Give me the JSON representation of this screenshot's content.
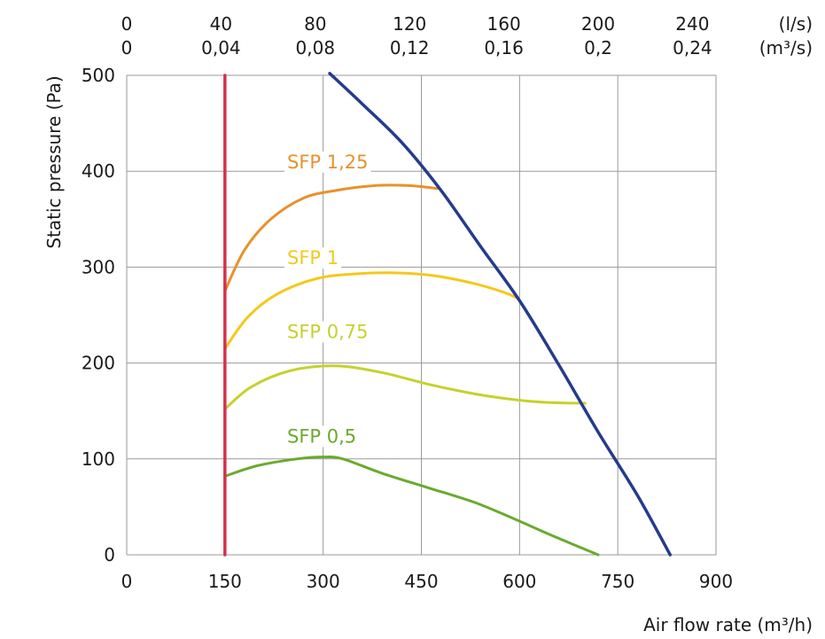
{
  "chart_data": {
    "type": "line",
    "xlabel": "Air flow rate (m³/h)",
    "ylabel": "Static pressure (Pa)",
    "xlim": [
      0,
      900
    ],
    "ylim": [
      0,
      500
    ],
    "x_ticks": [
      "0",
      "150",
      "300",
      "450",
      "600",
      "750",
      "900"
    ],
    "y_ticks": [
      "0",
      "100",
      "200",
      "300",
      "400",
      "500"
    ],
    "top_axis_ls": {
      "unit": "(l/s)",
      "ticks": [
        {
          "value": 0,
          "label": "0"
        },
        {
          "value": 40,
          "label": "40"
        },
        {
          "value": 80,
          "label": "80"
        },
        {
          "value": 120,
          "label": "120"
        },
        {
          "value": 160,
          "label": "160"
        },
        {
          "value": 200,
          "label": "200"
        },
        {
          "value": 240,
          "label": "240"
        }
      ]
    },
    "top_axis_m3s": {
      "unit": "(m³/s)",
      "ticks": [
        {
          "value": 0,
          "label": "0"
        },
        {
          "value": 0.04,
          "label": "0,04"
        },
        {
          "value": 0.08,
          "label": "0,08"
        },
        {
          "value": 0.12,
          "label": "0,12"
        },
        {
          "value": 0.16,
          "label": "0,16"
        },
        {
          "value": 0.2,
          "label": "0,2"
        },
        {
          "value": 0.24,
          "label": "0,24"
        }
      ]
    },
    "grid": true,
    "series": [
      {
        "color": "#253b8c",
        "points": [
          [
            310,
            502
          ],
          [
            360,
            470
          ],
          [
            420,
            430
          ],
          [
            480,
            380
          ],
          [
            540,
            322
          ],
          [
            600,
            265
          ],
          [
            660,
            198
          ],
          [
            720,
            128
          ],
          [
            780,
            62
          ],
          [
            830,
            0
          ]
        ]
      },
      {
        "color": "#d6304c",
        "points": [
          [
            150,
            0
          ],
          [
            150,
            500
          ]
        ]
      },
      {
        "name": "SFP 1,25",
        "color": "#e8912c",
        "label_at": [
          245,
          403
        ],
        "points": [
          [
            150,
            275
          ],
          [
            180,
            318
          ],
          [
            220,
            350
          ],
          [
            270,
            372
          ],
          [
            320,
            380
          ],
          [
            380,
            385
          ],
          [
            430,
            385
          ],
          [
            475,
            382
          ]
        ]
      },
      {
        "name": "SFP 1",
        "color": "#f4c81c",
        "label_at": [
          245,
          303
        ],
        "points": [
          [
            150,
            215
          ],
          [
            185,
            248
          ],
          [
            230,
            272
          ],
          [
            290,
            288
          ],
          [
            350,
            293
          ],
          [
            410,
            294
          ],
          [
            470,
            291
          ],
          [
            530,
            283
          ],
          [
            575,
            274
          ],
          [
            596,
            268
          ]
        ]
      },
      {
        "name": "SFP 0,75",
        "color": "#c6d12d",
        "label_at": [
          245,
          226
        ],
        "points": [
          [
            150,
            152
          ],
          [
            190,
            175
          ],
          [
            250,
            192
          ],
          [
            320,
            197
          ],
          [
            390,
            190
          ],
          [
            460,
            178
          ],
          [
            530,
            168
          ],
          [
            590,
            162
          ],
          [
            640,
            159
          ],
          [
            700,
            158
          ]
        ]
      },
      {
        "name": "SFP 0,5",
        "color": "#6aaa2e",
        "label_at": [
          245,
          117
        ],
        "points": [
          [
            150,
            82
          ],
          [
            200,
            93
          ],
          [
            260,
            100
          ],
          [
            300,
            102
          ],
          [
            330,
            100
          ],
          [
            390,
            85
          ],
          [
            460,
            70
          ],
          [
            530,
            55
          ],
          [
            590,
            38
          ],
          [
            650,
            20
          ],
          [
            720,
            0
          ]
        ]
      }
    ]
  }
}
